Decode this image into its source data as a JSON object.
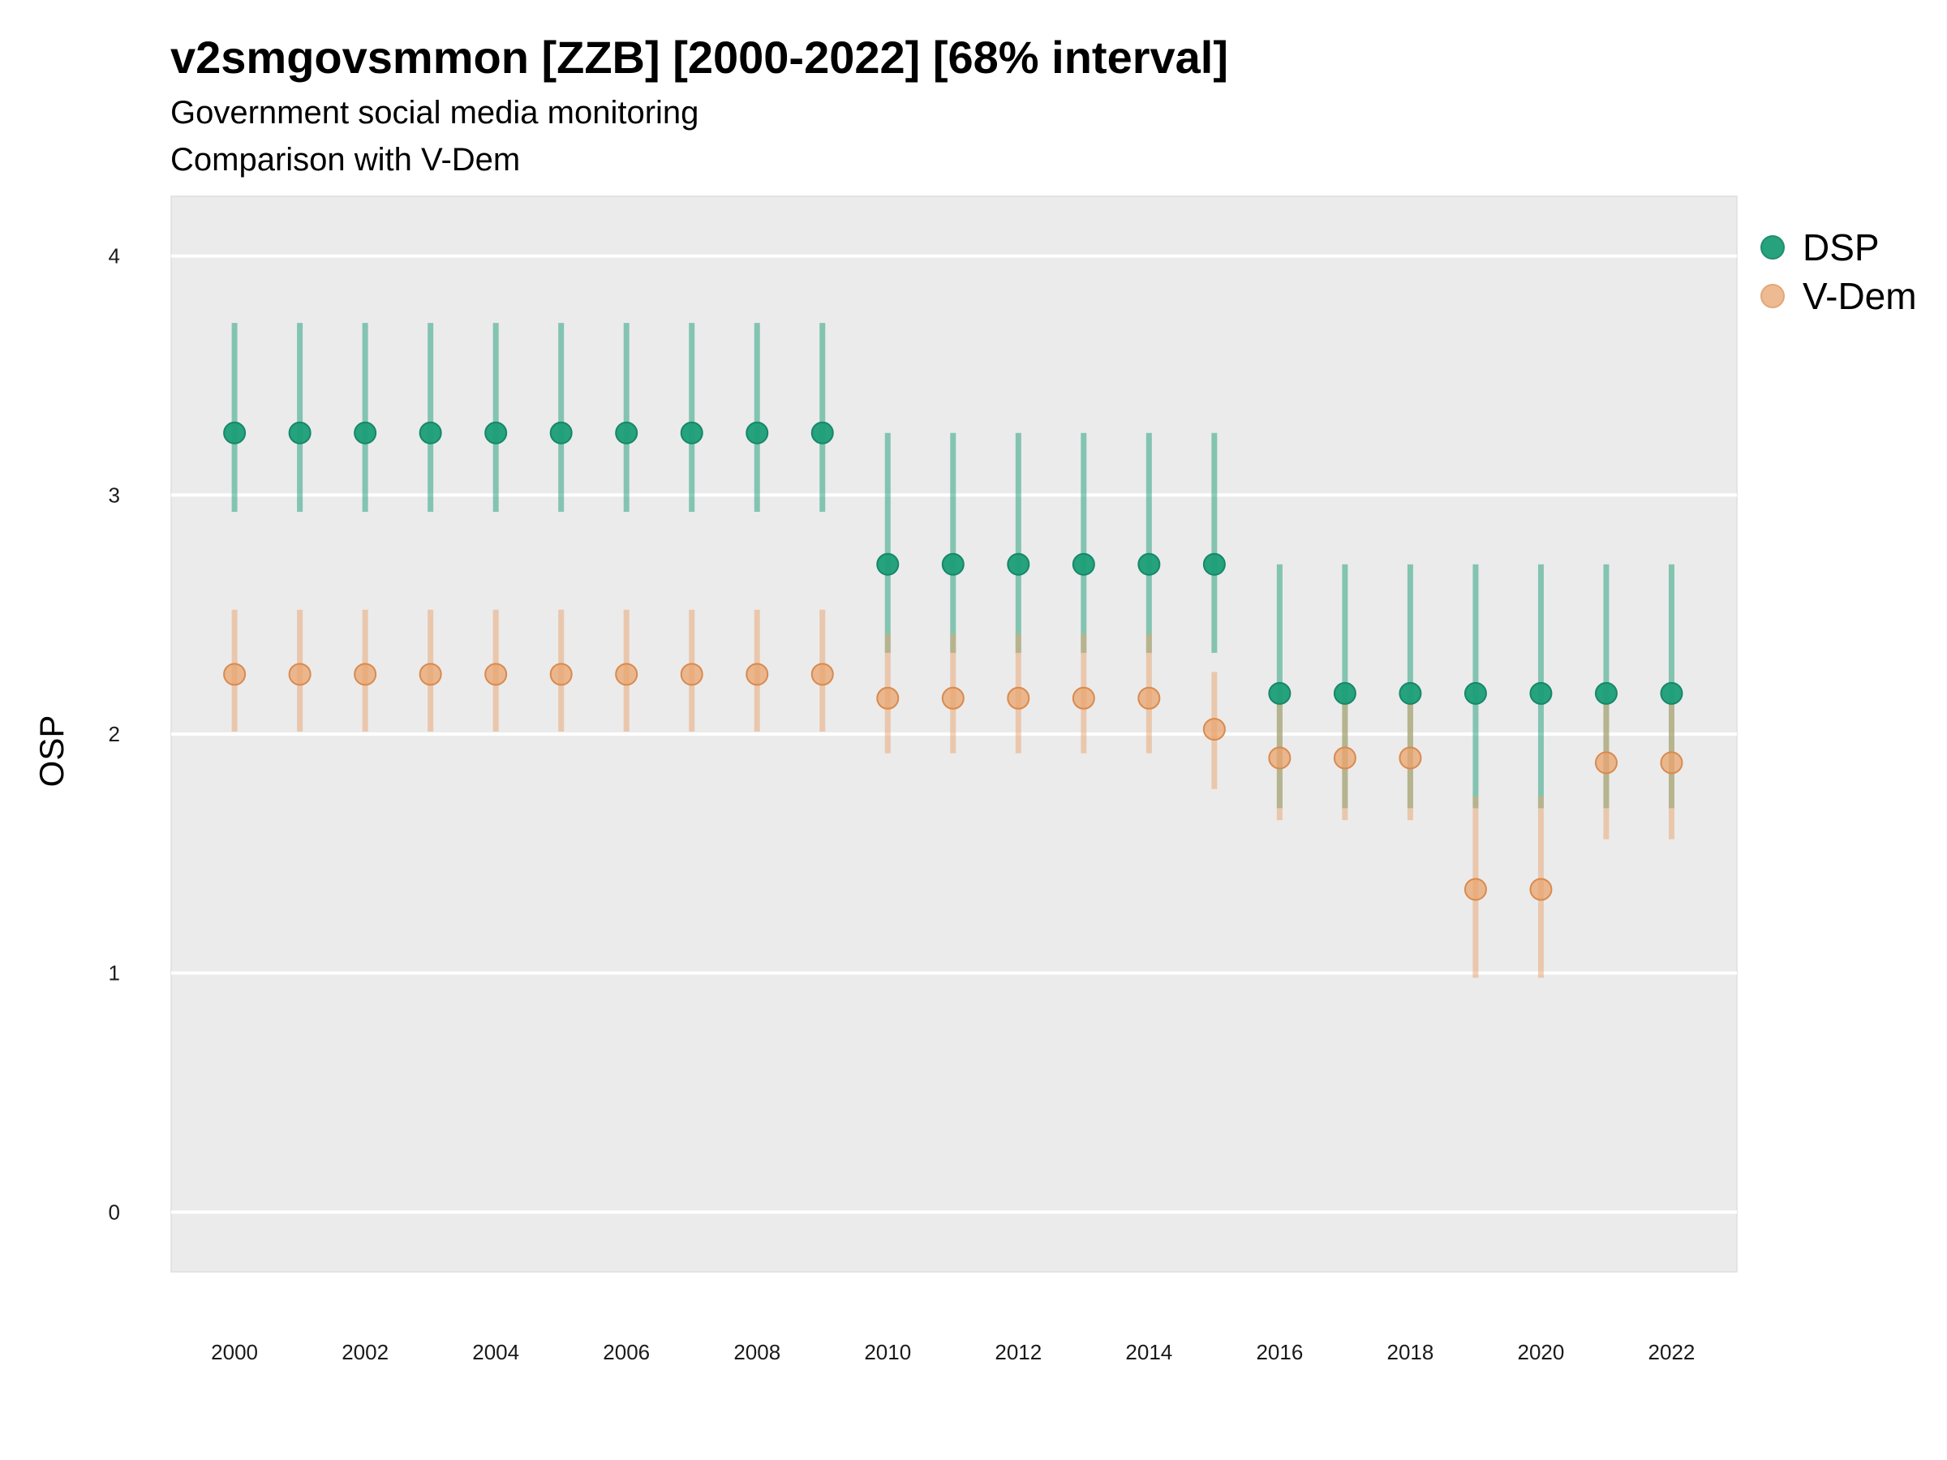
{
  "title": "v2smgovsmmon [ZZB] [2000-2022] [68% interval]",
  "subtitle_1": "Government social media monitoring",
  "subtitle_2": "Comparison with V-Dem",
  "chart_data": {
    "type": "scatter",
    "title": "v2smgovsmmon [ZZB] [2000-2022] [68% interval]",
    "subtitle": [
      "Government social media monitoring",
      "Comparison with V-Dem"
    ],
    "xlabel": "",
    "ylabel": "OSP",
    "xlim": [
      1999.03,
      2023.0
    ],
    "ylim": [
      -0.25,
      4.25
    ],
    "x_ticks": [
      2000,
      2002,
      2004,
      2006,
      2008,
      2010,
      2012,
      2014,
      2016,
      2018,
      2020,
      2022
    ],
    "y_ticks": [
      0,
      1,
      2,
      3,
      4
    ],
    "grid": true,
    "legend_position": "right",
    "x": [
      2000,
      2001,
      2002,
      2003,
      2004,
      2005,
      2006,
      2007,
      2008,
      2009,
      2010,
      2011,
      2012,
      2013,
      2014,
      2015,
      2016,
      2017,
      2018,
      2019,
      2020,
      2021,
      2022
    ],
    "series": [
      {
        "name": "DSP",
        "color": "#1b9e77",
        "values": [
          3.26,
          3.26,
          3.26,
          3.26,
          3.26,
          3.26,
          3.26,
          3.26,
          3.26,
          3.26,
          2.71,
          2.71,
          2.71,
          2.71,
          2.71,
          2.71,
          2.17,
          2.17,
          2.17,
          2.17,
          2.17,
          2.17,
          2.17
        ],
        "lower": [
          2.93,
          2.93,
          2.93,
          2.93,
          2.93,
          2.93,
          2.93,
          2.93,
          2.93,
          2.93,
          2.34,
          2.34,
          2.34,
          2.34,
          2.34,
          2.34,
          1.69,
          1.69,
          1.69,
          1.69,
          1.69,
          1.69,
          1.69
        ],
        "upper": [
          3.72,
          3.72,
          3.72,
          3.72,
          3.72,
          3.72,
          3.72,
          3.72,
          3.72,
          3.72,
          3.26,
          3.26,
          3.26,
          3.26,
          3.26,
          3.26,
          2.71,
          2.71,
          2.71,
          2.71,
          2.71,
          2.71,
          2.71
        ]
      },
      {
        "name": "V-Dem",
        "color": "#e9a46e",
        "values": [
          2.25,
          2.25,
          2.25,
          2.25,
          2.25,
          2.25,
          2.25,
          2.25,
          2.25,
          2.25,
          2.15,
          2.15,
          2.15,
          2.15,
          2.15,
          2.02,
          1.9,
          1.9,
          1.9,
          1.35,
          1.35,
          1.88,
          1.88
        ],
        "lower": [
          2.01,
          2.01,
          2.01,
          2.01,
          2.01,
          2.01,
          2.01,
          2.01,
          2.01,
          2.01,
          1.92,
          1.92,
          1.92,
          1.92,
          1.92,
          1.77,
          1.64,
          1.64,
          1.64,
          0.98,
          0.98,
          1.56,
          1.56
        ],
        "upper": [
          2.52,
          2.52,
          2.52,
          2.52,
          2.52,
          2.52,
          2.52,
          2.52,
          2.52,
          2.52,
          2.42,
          2.42,
          2.42,
          2.42,
          2.42,
          2.26,
          2.14,
          2.14,
          2.14,
          1.74,
          1.74,
          2.13,
          2.13
        ]
      }
    ]
  }
}
